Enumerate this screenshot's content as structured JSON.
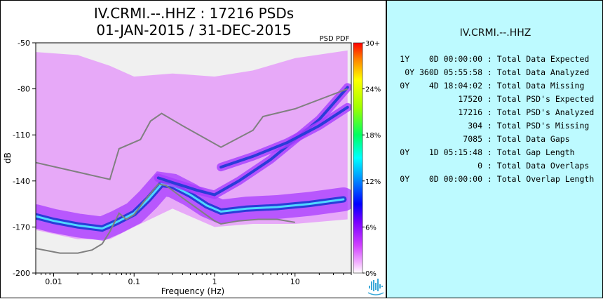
{
  "title": {
    "line1": "IV.CRMI.--.HHZ : 17216 PSDs",
    "line2": "01-JAN-2015 / 31-DEC-2015"
  },
  "legend_label": "PSD PDF",
  "colors": {
    "plot_bg": "#f0f0f0",
    "pdf_magenta": "#e070ff",
    "pdf_violet": "#a83cff",
    "pdf_blue": "#2a3cd8",
    "pdf_cyan": "#4fd8ff",
    "noise_model": "#808080",
    "stats_panel_bg": "#bdfaff"
  },
  "colorbar": {
    "ticks": [
      "30+",
      "24%",
      "18%",
      "12%",
      "6%",
      "0%"
    ]
  },
  "stats_panel": {
    "station": "IV.CRMI.--.HHZ",
    "rows": [
      {
        "value": "1Y    0D 00:00:00",
        "label": ": Total Data Expected"
      },
      {
        "value": "0Y 360D 05:55:58",
        "label": ": Total Data Analyzed"
      },
      {
        "value": "0Y    4D 18:04:02",
        "label": ": Total Data Missing"
      },
      {
        "value": "17520",
        "label": ": Total PSD's Expected"
      },
      {
        "value": "17216",
        "label": ": Total PSD's Analyzed"
      },
      {
        "value": "304",
        "label": ": Total PSD's Missing"
      },
      {
        "value": "7085",
        "label": ": Total Data Gaps"
      },
      {
        "value": "0Y    1D 05:15:48",
        "label": ": Total Gap Length"
      },
      {
        "value": "0",
        "label": ": Total Data Overlaps"
      },
      {
        "value": "0Y    0D 00:00:00",
        "label": ": Total Overlap Length"
      }
    ]
  },
  "chart_data": {
    "type": "heatmap",
    "xlabel": "Frequency (Hz)",
    "ylabel": "dB",
    "x_scale": "log",
    "xlim": [
      0.006,
      50
    ],
    "ylim": [
      -200,
      -50
    ],
    "x_ticks": [
      {
        "value": 0.01,
        "label": "0.01"
      },
      {
        "value": 0.1,
        "label": "0.1"
      },
      {
        "value": 1,
        "label": "1"
      },
      {
        "value": 10,
        "label": "10"
      }
    ],
    "y_ticks": [
      {
        "value": -50,
        "label": "-50"
      },
      {
        "value": -80,
        "label": "-80"
      },
      {
        "value": -110,
        "label": "-110"
      },
      {
        "value": -140,
        "label": "-140"
      },
      {
        "value": -170,
        "label": "-170"
      },
      {
        "value": -200,
        "label": "-200"
      }
    ],
    "noise_models": [
      {
        "points": [
          [
            0.006,
            -128
          ],
          [
            0.05,
            -139
          ],
          [
            0.065,
            -119
          ],
          [
            0.12,
            -113
          ],
          [
            0.16,
            -101
          ],
          [
            0.22,
            -96
          ],
          [
            0.4,
            -104
          ],
          [
            1.2,
            -118
          ],
          [
            3.0,
            -107
          ],
          [
            4.0,
            -98
          ],
          [
            10,
            -93
          ],
          [
            45,
            -80
          ]
        ]
      },
      {
        "points": [
          [
            0.006,
            -184
          ],
          [
            0.012,
            -187
          ],
          [
            0.02,
            -187
          ],
          [
            0.03,
            -185
          ],
          [
            0.04,
            -181
          ],
          [
            0.05,
            -173
          ],
          [
            0.065,
            -161
          ],
          [
            0.08,
            -165
          ],
          [
            0.1,
            -162
          ],
          [
            0.13,
            -154
          ],
          [
            0.2,
            -142
          ],
          [
            0.25,
            -143
          ],
          [
            0.4,
            -151
          ],
          [
            0.65,
            -159
          ],
          [
            1.0,
            -166
          ],
          [
            1.2,
            -168
          ],
          [
            2.0,
            -166
          ],
          [
            3.5,
            -165
          ],
          [
            6.0,
            -165
          ],
          [
            10,
            -167
          ]
        ]
      }
    ],
    "pdf_modes": [
      {
        "level": "peak",
        "points": [
          [
            0.006,
            -163
          ],
          [
            0.01,
            -166
          ],
          [
            0.02,
            -169
          ],
          [
            0.04,
            -171
          ],
          [
            0.06,
            -167
          ],
          [
            0.1,
            -161
          ],
          [
            0.15,
            -152
          ],
          [
            0.22,
            -142
          ],
          [
            0.3,
            -143
          ],
          [
            0.5,
            -149
          ],
          [
            0.8,
            -156
          ],
          [
            1.2,
            -160
          ],
          [
            2.5,
            -158
          ],
          [
            6,
            -157
          ],
          [
            15,
            -155
          ],
          [
            40,
            -152
          ]
        ]
      },
      {
        "level": "secondary",
        "points": [
          [
            0.2,
            -138
          ],
          [
            0.3,
            -141
          ],
          [
            0.6,
            -146
          ],
          [
            1.0,
            -149
          ],
          [
            2.0,
            -140
          ],
          [
            5.0,
            -126
          ],
          [
            10,
            -113
          ],
          [
            20,
            -100
          ],
          [
            45,
            -79
          ]
        ]
      },
      {
        "level": "secondary",
        "points": [
          [
            1.2,
            -131
          ],
          [
            3,
            -124
          ],
          [
            8,
            -115
          ],
          [
            20,
            -104
          ],
          [
            45,
            -92
          ]
        ]
      }
    ],
    "pdf_range": {
      "upper": [
        [
          0.006,
          -56
        ],
        [
          0.02,
          -58
        ],
        [
          0.05,
          -65
        ],
        [
          0.1,
          -72
        ],
        [
          0.3,
          -70
        ],
        [
          1,
          -72
        ],
        [
          3,
          -68
        ],
        [
          10,
          -60
        ],
        [
          45,
          -55
        ]
      ],
      "lower": [
        [
          0.006,
          -172
        ],
        [
          0.02,
          -178
        ],
        [
          0.05,
          -178
        ],
        [
          0.1,
          -170
        ],
        [
          0.3,
          -158
        ],
        [
          1,
          -170
        ],
        [
          3,
          -168
        ],
        [
          10,
          -168
        ],
        [
          45,
          -165
        ]
      ]
    }
  }
}
